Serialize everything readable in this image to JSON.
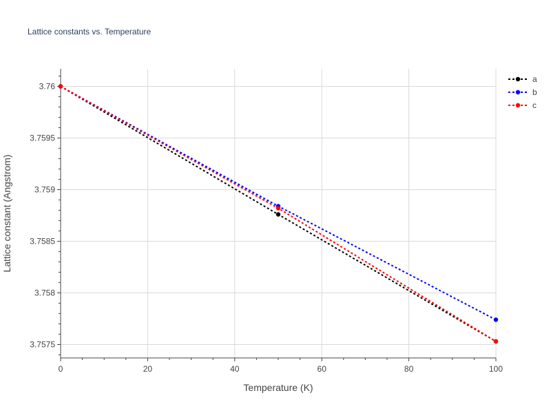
{
  "chart_data": {
    "type": "line",
    "title": "Lattice constants vs. Temperature",
    "xlabel": "Temperature (K)",
    "ylabel": "Lattice constant (Angstrom)",
    "xlim": [
      0,
      100
    ],
    "ylim": [
      3.75737,
      3.76017
    ],
    "xticks": [
      0,
      20,
      40,
      60,
      80,
      100
    ],
    "xtick_labels": [
      "0",
      "20",
      "40",
      "60",
      "80",
      "100"
    ],
    "yticks": [
      3.7575,
      3.758,
      3.7585,
      3.759,
      3.7595,
      3.76
    ],
    "ytick_labels": [
      "3.7575",
      "3.758",
      "3.7585",
      "3.759",
      "3.7595",
      "3.76"
    ],
    "grid": true,
    "legend_position": "top-right",
    "series": [
      {
        "name": "a",
        "color": "#000000",
        "x": [
          0,
          50,
          100
        ],
        "y": [
          3.76,
          3.75876,
          3.75753
        ]
      },
      {
        "name": "b",
        "color": "#0000ff",
        "x": [
          0,
          50,
          100
        ],
        "y": [
          3.76,
          3.75884,
          3.75774
        ]
      },
      {
        "name": "c",
        "color": "#ff0000",
        "x": [
          0,
          50,
          100
        ],
        "y": [
          3.76,
          3.75882,
          3.75753
        ]
      }
    ]
  }
}
